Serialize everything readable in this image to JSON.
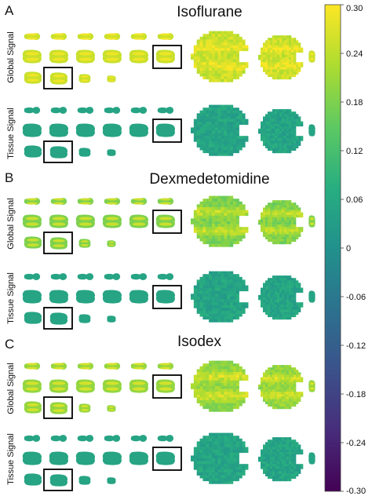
{
  "panels": [
    {
      "letter": "A",
      "title": "Isoflurane",
      "rows": [
        {
          "label": "Global Signal",
          "intensity": 0.25,
          "hot": 0.29
        },
        {
          "label": "Tissue Signal",
          "intensity": 0.05,
          "hot": 0.06
        }
      ]
    },
    {
      "letter": "B",
      "title": "Dexmedetomidine",
      "rows": [
        {
          "label": "Global Signal",
          "intensity": 0.18,
          "hot": 0.26
        },
        {
          "label": "Tissue Signal",
          "intensity": 0.05,
          "hot": 0.06
        }
      ]
    },
    {
      "letter": "C",
      "title": "Isodex",
      "rows": [
        {
          "label": "Global Signal",
          "intensity": 0.2,
          "hot": 0.27
        },
        {
          "label": "Tissue Signal",
          "intensity": 0.05,
          "hot": 0.06
        }
      ]
    }
  ],
  "colorbar": {
    "min": -0.3,
    "max": 0.3,
    "ticks": [
      "0.30",
      "0.24",
      "0.18",
      "0.12",
      "0.06",
      "0",
      "-0.06",
      "-0.12",
      "-0.18",
      "-0.24",
      "-0.30"
    ],
    "colormap": [
      "#440154",
      "#472d7b",
      "#3b528b",
      "#2c728e",
      "#21918c",
      "#28ae80",
      "#5ec962",
      "#addc30",
      "#fde725"
    ]
  }
}
